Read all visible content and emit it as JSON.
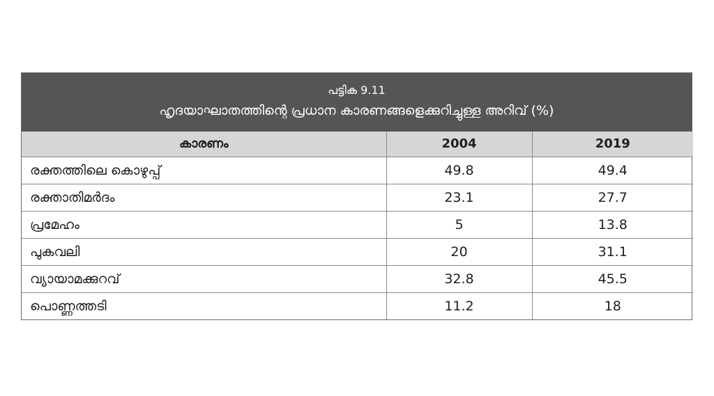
{
  "table": {
    "number": "പട്ടിക 9.11",
    "title": "ഹൃദയാഘാതത്തിന്റെ പ്രധാന കാരണങ്ങളെക്കുറിച്ചുള്ള അറിവ് (%)"
  },
  "chart_data": {
    "type": "table",
    "title": "ഹൃദയാഘാതത്തിന്റെ പ്രധാന കാരണങ്ങളെക്കുറിച്ചുള്ള അറിവ് (%)",
    "columns": [
      "കാരണം",
      "2004",
      "2019"
    ],
    "rows": [
      {
        "label": "രക്തത്തിലെ കൊഴുപ്പ്",
        "values": [
          "49.8",
          "49.4"
        ]
      },
      {
        "label": "രക്താതിമർദം",
        "values": [
          "23.1",
          "27.7"
        ]
      },
      {
        "label": "പ്രമേഹം",
        "values": [
          "5",
          "13.8"
        ]
      },
      {
        "label": "പുകവലി",
        "values": [
          "20",
          "31.1"
        ]
      },
      {
        "label": "വ്യായാമക്കുറവ്",
        "values": [
          "32.8",
          "45.5"
        ]
      },
      {
        "label": "പൊണ്ണത്തടി",
        "values": [
          "11.2",
          "18"
        ]
      }
    ]
  }
}
